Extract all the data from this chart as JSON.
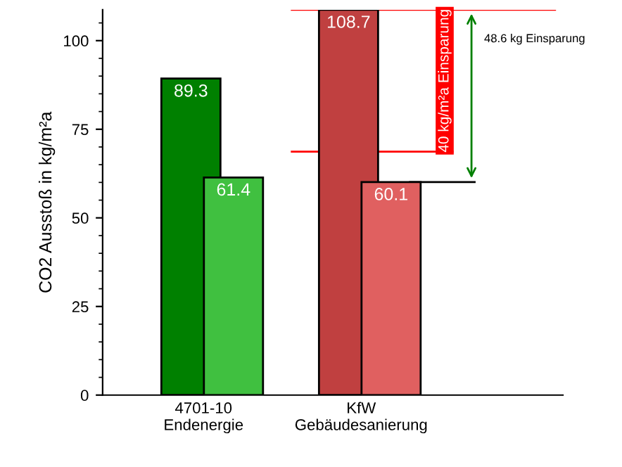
{
  "chart_data": {
    "type": "bar",
    "ylabel": "CO2 Ausstoß in kg/m²a",
    "categories": [
      "4701-10\nEndenergie",
      "KfW\nGebäudesanierung"
    ],
    "series": [
      {
        "colors": [
          "#008000",
          "#c04040"
        ],
        "values": [
          89.3,
          108.7
        ]
      },
      {
        "colors": [
          "#40c040",
          "#e06060"
        ],
        "values": [
          61.4,
          60.1
        ]
      }
    ],
    "ylim": [
      0,
      108.7
    ],
    "yticks": [
      0,
      25,
      50,
      75,
      100
    ],
    "grid": false,
    "legend": false,
    "data_labels": true,
    "ref_lines": [
      {
        "axis": "y",
        "value": 108.7,
        "color": "#ff0000"
      },
      {
        "axis": "y",
        "value": 68.7,
        "color": "#ff0000"
      },
      {
        "axis": "y",
        "value": 60.1,
        "color": "#000000"
      }
    ],
    "annotations": [
      "40 kg/m²a Einsparung",
      "48.6 kg Einsparung"
    ]
  }
}
